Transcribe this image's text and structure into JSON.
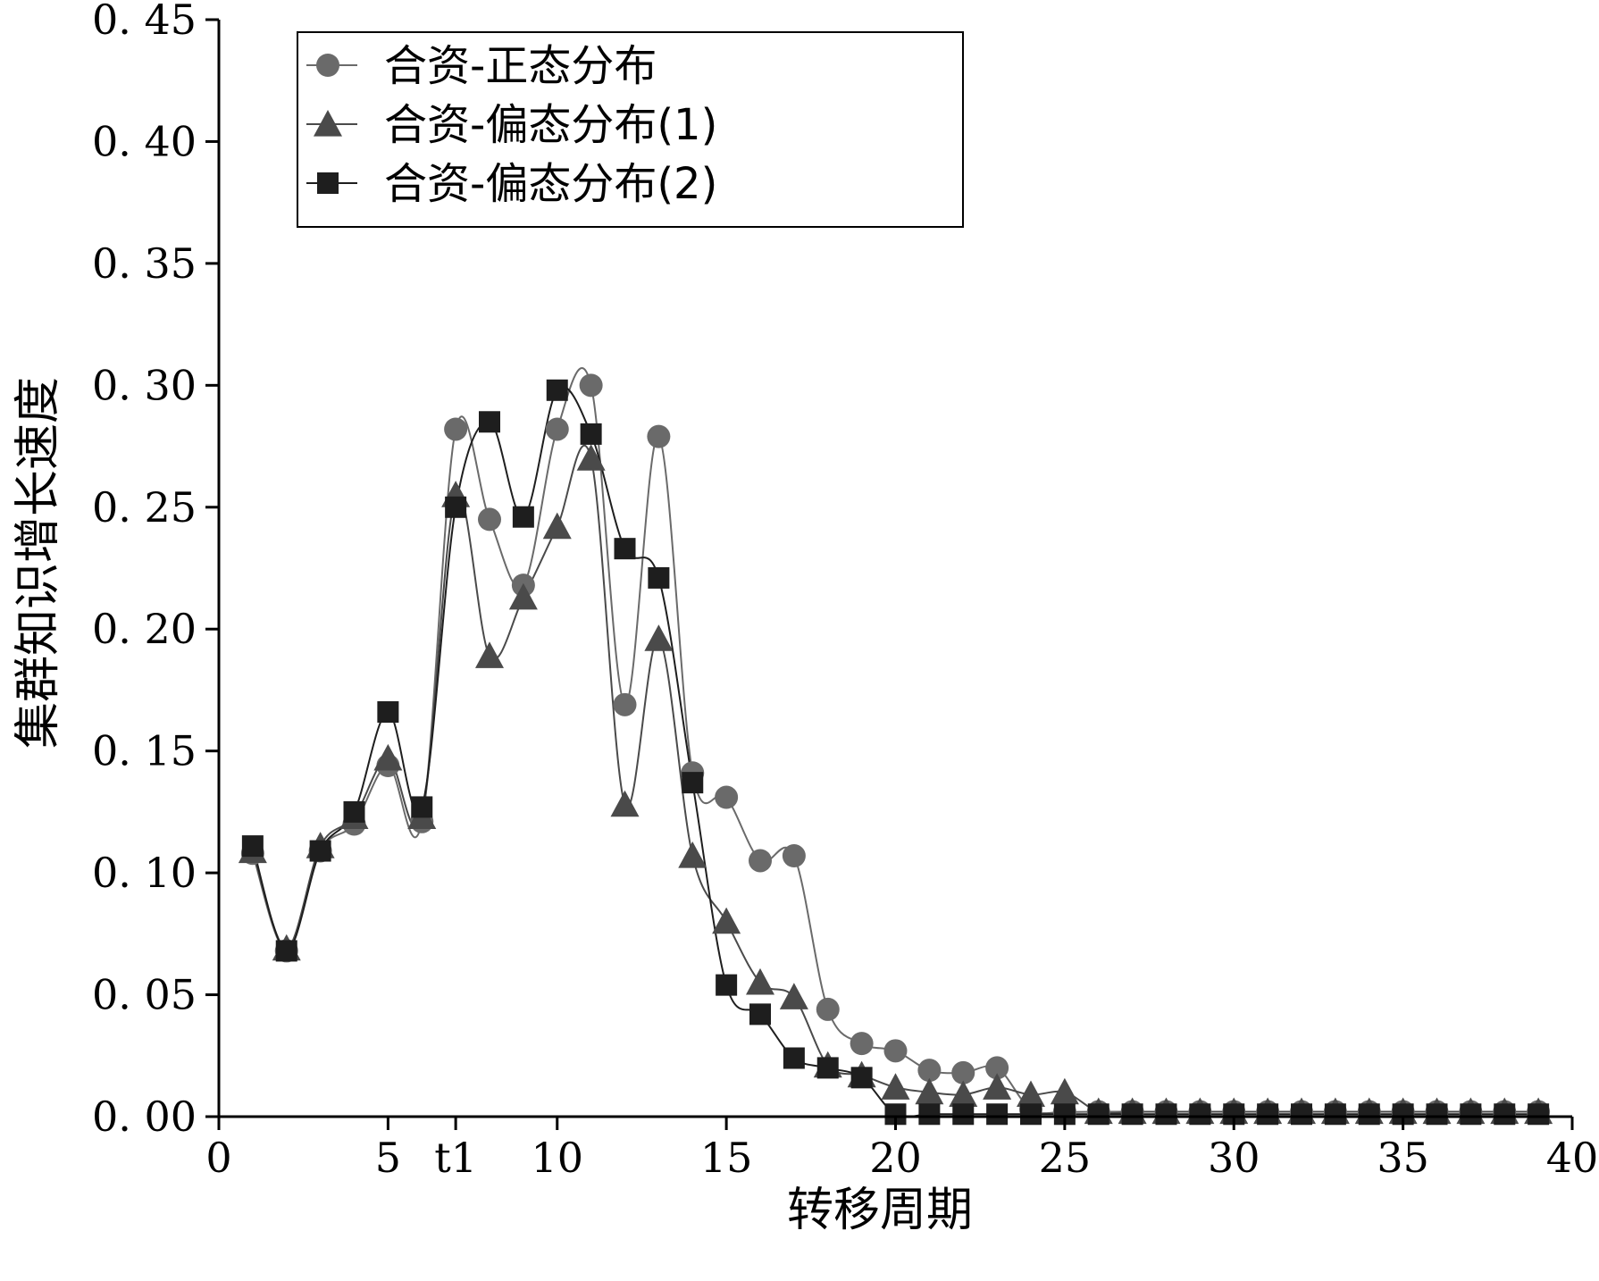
{
  "chart_data": {
    "type": "line",
    "xlabel": "转移周期",
    "ylabel": "集群知识增长速度",
    "xlim": [
      0,
      40
    ],
    "ylim": [
      0,
      0.45
    ],
    "x_ticks": [
      {
        "value": 0,
        "label": "0"
      },
      {
        "value": 5,
        "label": "5"
      },
      {
        "value": 7,
        "label": "t1"
      },
      {
        "value": 10,
        "label": "10"
      },
      {
        "value": 15,
        "label": "15"
      },
      {
        "value": 20,
        "label": "20"
      },
      {
        "value": 25,
        "label": "25"
      },
      {
        "value": 30,
        "label": "30"
      },
      {
        "value": 35,
        "label": "35"
      },
      {
        "value": 40,
        "label": "40"
      }
    ],
    "y_ticks": [
      {
        "value": 0.0,
        "label": "0. 00"
      },
      {
        "value": 0.05,
        "label": "0. 05"
      },
      {
        "value": 0.1,
        "label": "0. 10"
      },
      {
        "value": 0.15,
        "label": "0. 15"
      },
      {
        "value": 0.2,
        "label": "0. 20"
      },
      {
        "value": 0.25,
        "label": "0. 25"
      },
      {
        "value": 0.3,
        "label": "0. 30"
      },
      {
        "value": 0.35,
        "label": "0. 35"
      },
      {
        "value": 0.4,
        "label": "0. 40"
      },
      {
        "value": 0.45,
        "label": "0. 45"
      }
    ],
    "grid": false,
    "legend_position": "top-left",
    "series": [
      {
        "name": "合资-正态分布",
        "marker": "circle",
        "color": "#6a6a6a",
        "x": [
          1,
          2,
          3,
          4,
          5,
          6,
          7,
          8,
          9,
          10,
          11,
          12,
          13,
          14,
          15,
          16,
          17,
          18,
          19,
          20,
          21,
          22,
          23,
          24,
          25,
          26,
          27,
          28,
          29,
          30,
          31,
          32,
          33,
          34,
          35,
          36,
          37,
          38,
          39
        ],
        "y": [
          0.108,
          0.068,
          0.109,
          0.12,
          0.144,
          0.121,
          0.282,
          0.245,
          0.218,
          0.282,
          0.3,
          0.169,
          0.279,
          0.141,
          0.131,
          0.105,
          0.107,
          0.044,
          0.03,
          0.027,
          0.019,
          0.018,
          0.02,
          0.003,
          0.002,
          0.002,
          0.002,
          0.002,
          0.002,
          0.002,
          0.002,
          0.002,
          0.002,
          0.002,
          0.002,
          0.002,
          0.002,
          0.002,
          0.002
        ]
      },
      {
        "name": "合资-偏态分布(1)",
        "marker": "triangle",
        "color": "#4a4a4a",
        "x": [
          1,
          2,
          3,
          4,
          5,
          6,
          7,
          8,
          9,
          10,
          11,
          12,
          13,
          14,
          15,
          16,
          17,
          18,
          19,
          20,
          21,
          22,
          23,
          24,
          25,
          26,
          27,
          28,
          29,
          30,
          31,
          32,
          33,
          34,
          35,
          36,
          37,
          38,
          39
        ],
        "y": [
          0.109,
          0.069,
          0.111,
          0.123,
          0.147,
          0.123,
          0.255,
          0.189,
          0.213,
          0.242,
          0.27,
          0.128,
          0.196,
          0.107,
          0.08,
          0.055,
          0.049,
          0.021,
          0.017,
          0.012,
          0.01,
          0.009,
          0.012,
          0.009,
          0.01,
          0.002,
          0.002,
          0.002,
          0.002,
          0.002,
          0.002,
          0.002,
          0.002,
          0.002,
          0.002,
          0.002,
          0.002,
          0.002,
          0.002
        ]
      },
      {
        "name": "合资-偏态分布(2)",
        "marker": "square",
        "color": "#1e1e1e",
        "x": [
          1,
          2,
          3,
          4,
          5,
          6,
          7,
          8,
          9,
          10,
          11,
          12,
          13,
          14,
          15,
          16,
          17,
          18,
          19,
          20,
          21,
          22,
          23,
          24,
          25,
          26,
          27,
          28,
          29,
          30,
          31,
          32,
          33,
          34,
          35,
          36,
          37,
          38,
          39
        ],
        "y": [
          0.111,
          0.068,
          0.109,
          0.125,
          0.166,
          0.127,
          0.25,
          0.285,
          0.246,
          0.298,
          0.28,
          0.233,
          0.221,
          0.137,
          0.054,
          0.042,
          0.024,
          0.02,
          0.016,
          0.001,
          0.001,
          0.001,
          0.001,
          0.001,
          0.001,
          0.001,
          0.001,
          0.001,
          0.001,
          0.001,
          0.001,
          0.001,
          0.001,
          0.001,
          0.001,
          0.001,
          0.001,
          0.001,
          0.001
        ]
      }
    ]
  }
}
